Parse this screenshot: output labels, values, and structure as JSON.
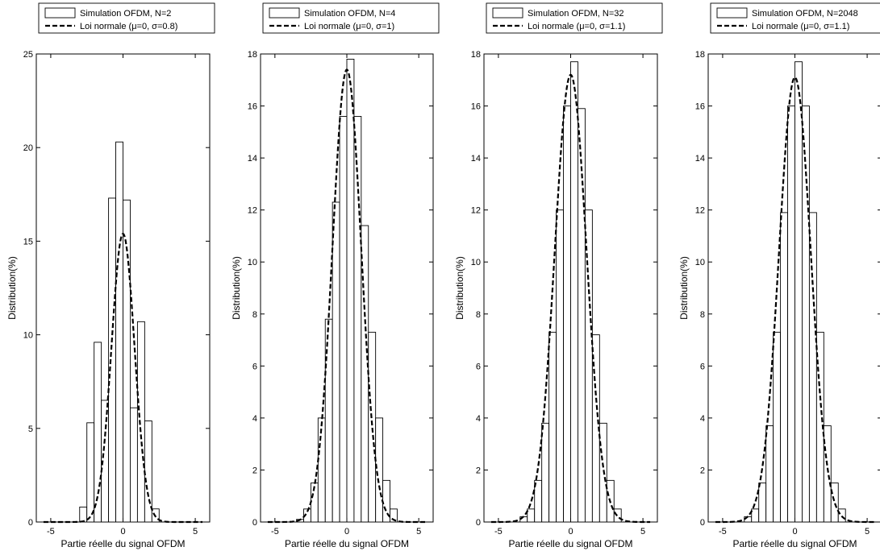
{
  "chart_data": [
    {
      "type": "bar",
      "xlabel": "Partie réelle du signal OFDM",
      "ylabel": "Distribution(%)",
      "xlim": [
        -6,
        6
      ],
      "ylim": [
        0,
        25
      ],
      "xticks": [
        -5,
        0,
        5
      ],
      "yticks": [
        0,
        5,
        10,
        15,
        20,
        25
      ],
      "legend_position": "top",
      "series": [
        {
          "name": "Simulation OFDM, N=2",
          "kind": "histogram",
          "x": [
            -2.75,
            -2.25,
            -1.75,
            -1.25,
            -0.75,
            -0.25,
            0.25,
            0.75,
            1.25,
            1.75,
            2.25
          ],
          "values": [
            0.8,
            5.3,
            9.6,
            6.5,
            17.3,
            20.3,
            17.2,
            6.1,
            10.7,
            5.4,
            0.7
          ]
        },
        {
          "name": "Loi normale (μ=0, σ=0.8)",
          "kind": "normal-curve",
          "mu": 0,
          "sigma": 0.8,
          "peak": 15.4
        }
      ]
    },
    {
      "type": "bar",
      "xlabel": "Partie réelle du signal OFDM",
      "ylabel": "Distribution(%)",
      "xlim": [
        -6,
        6
      ],
      "ylim": [
        0,
        18
      ],
      "xticks": [
        -5,
        0,
        5
      ],
      "yticks": [
        0,
        2,
        4,
        6,
        8,
        10,
        12,
        14,
        16,
        18
      ],
      "legend_position": "top",
      "series": [
        {
          "name": "Simulation OFDM, N=4",
          "kind": "histogram",
          "x": [
            -3.25,
            -2.75,
            -2.25,
            -1.75,
            -1.25,
            -0.75,
            -0.25,
            0.25,
            0.75,
            1.25,
            1.75,
            2.25,
            2.75,
            3.25
          ],
          "values": [
            0.1,
            0.5,
            1.5,
            4.0,
            7.8,
            12.3,
            15.6,
            17.8,
            15.6,
            11.4,
            7.3,
            4.0,
            1.6,
            0.5
          ]
        },
        {
          "name": "Loi normale (μ=0, σ=1)",
          "kind": "normal-curve",
          "mu": 0,
          "sigma": 1.0,
          "peak": 17.4
        }
      ]
    },
    {
      "type": "bar",
      "xlabel": "Partie réelle du signal OFDM",
      "ylabel": "Distribution(%)",
      "xlim": [
        -6,
        6
      ],
      "ylim": [
        0,
        18
      ],
      "xticks": [
        -5,
        0,
        5
      ],
      "yticks": [
        0,
        2,
        4,
        6,
        8,
        10,
        12,
        14,
        16,
        18
      ],
      "legend_position": "top",
      "series": [
        {
          "name": "Simulation OFDM, N=32",
          "kind": "histogram",
          "x": [
            -3.25,
            -2.75,
            -2.25,
            -1.75,
            -1.25,
            -0.75,
            -0.25,
            0.25,
            0.75,
            1.25,
            1.75,
            2.25,
            2.75,
            3.25
          ],
          "values": [
            0.2,
            0.5,
            1.6,
            3.8,
            7.3,
            12.0,
            16.0,
            17.7,
            15.9,
            12.0,
            7.2,
            3.8,
            1.6,
            0.5
          ]
        },
        {
          "name": "Loi normale (μ=0, σ=1.1)",
          "kind": "normal-curve",
          "mu": 0,
          "sigma": 1.1,
          "peak": 17.2
        }
      ]
    },
    {
      "type": "bar",
      "xlabel": "Partie réelle du signal OFDM",
      "ylabel": "Distribution(%)",
      "xlim": [
        -6,
        6
      ],
      "ylim": [
        0,
        18
      ],
      "xticks": [
        -5,
        0,
        5
      ],
      "yticks": [
        0,
        2,
        4,
        6,
        8,
        10,
        12,
        14,
        16,
        18
      ],
      "legend_position": "top",
      "series": [
        {
          "name": "Simulation OFDM, N=2048",
          "kind": "histogram",
          "x": [
            -3.25,
            -2.75,
            -2.25,
            -1.75,
            -1.25,
            -0.75,
            -0.25,
            0.25,
            0.75,
            1.25,
            1.75,
            2.25,
            2.75,
            3.25
          ],
          "values": [
            0.2,
            0.5,
            1.5,
            3.7,
            7.3,
            11.9,
            16.0,
            17.7,
            16.0,
            11.9,
            7.3,
            3.7,
            1.5,
            0.5
          ]
        },
        {
          "name": "Loi normale (μ=0, σ=1.1)",
          "kind": "normal-curve",
          "mu": 0,
          "sigma": 1.1,
          "peak": 17.1
        }
      ]
    }
  ]
}
